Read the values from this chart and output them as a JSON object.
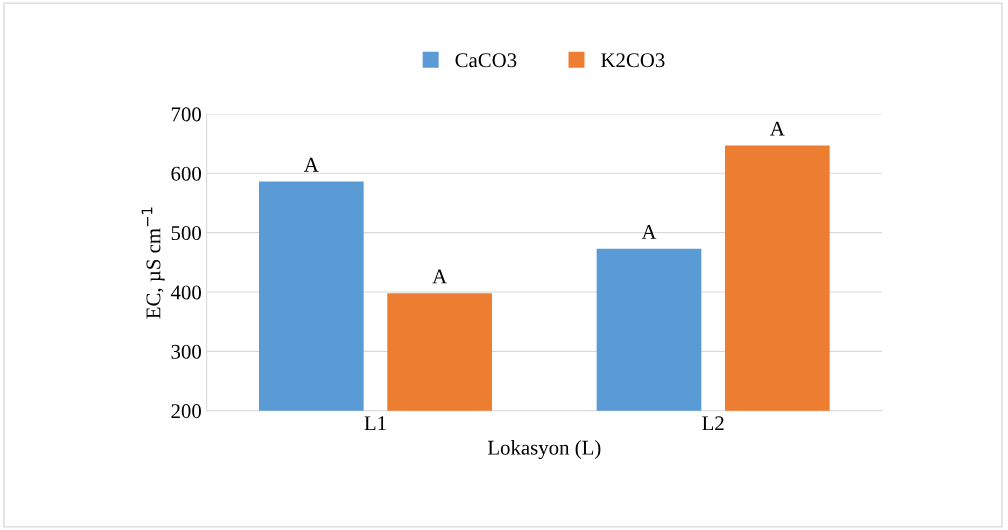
{
  "chart_data": {
    "type": "bar",
    "xlabel": "Lokasyon (L)",
    "ylabel": "EC, µS cm$^{−1}$",
    "categories": [
      "L1",
      "L2"
    ],
    "series": [
      {
        "name": "CaCO3",
        "color": "#5b9bd5",
        "values": [
          586,
          473
        ],
        "value_labels": [
          "A",
          "A"
        ]
      },
      {
        "name": "K2CO3",
        "color": "#ed7d31",
        "values": [
          398,
          647
        ],
        "value_labels": [
          "A",
          "A"
        ]
      }
    ],
    "ylim": [
      200,
      700
    ],
    "yticks": [
      200,
      300,
      400,
      500,
      600,
      700
    ],
    "grid": "y",
    "legend": "top"
  }
}
